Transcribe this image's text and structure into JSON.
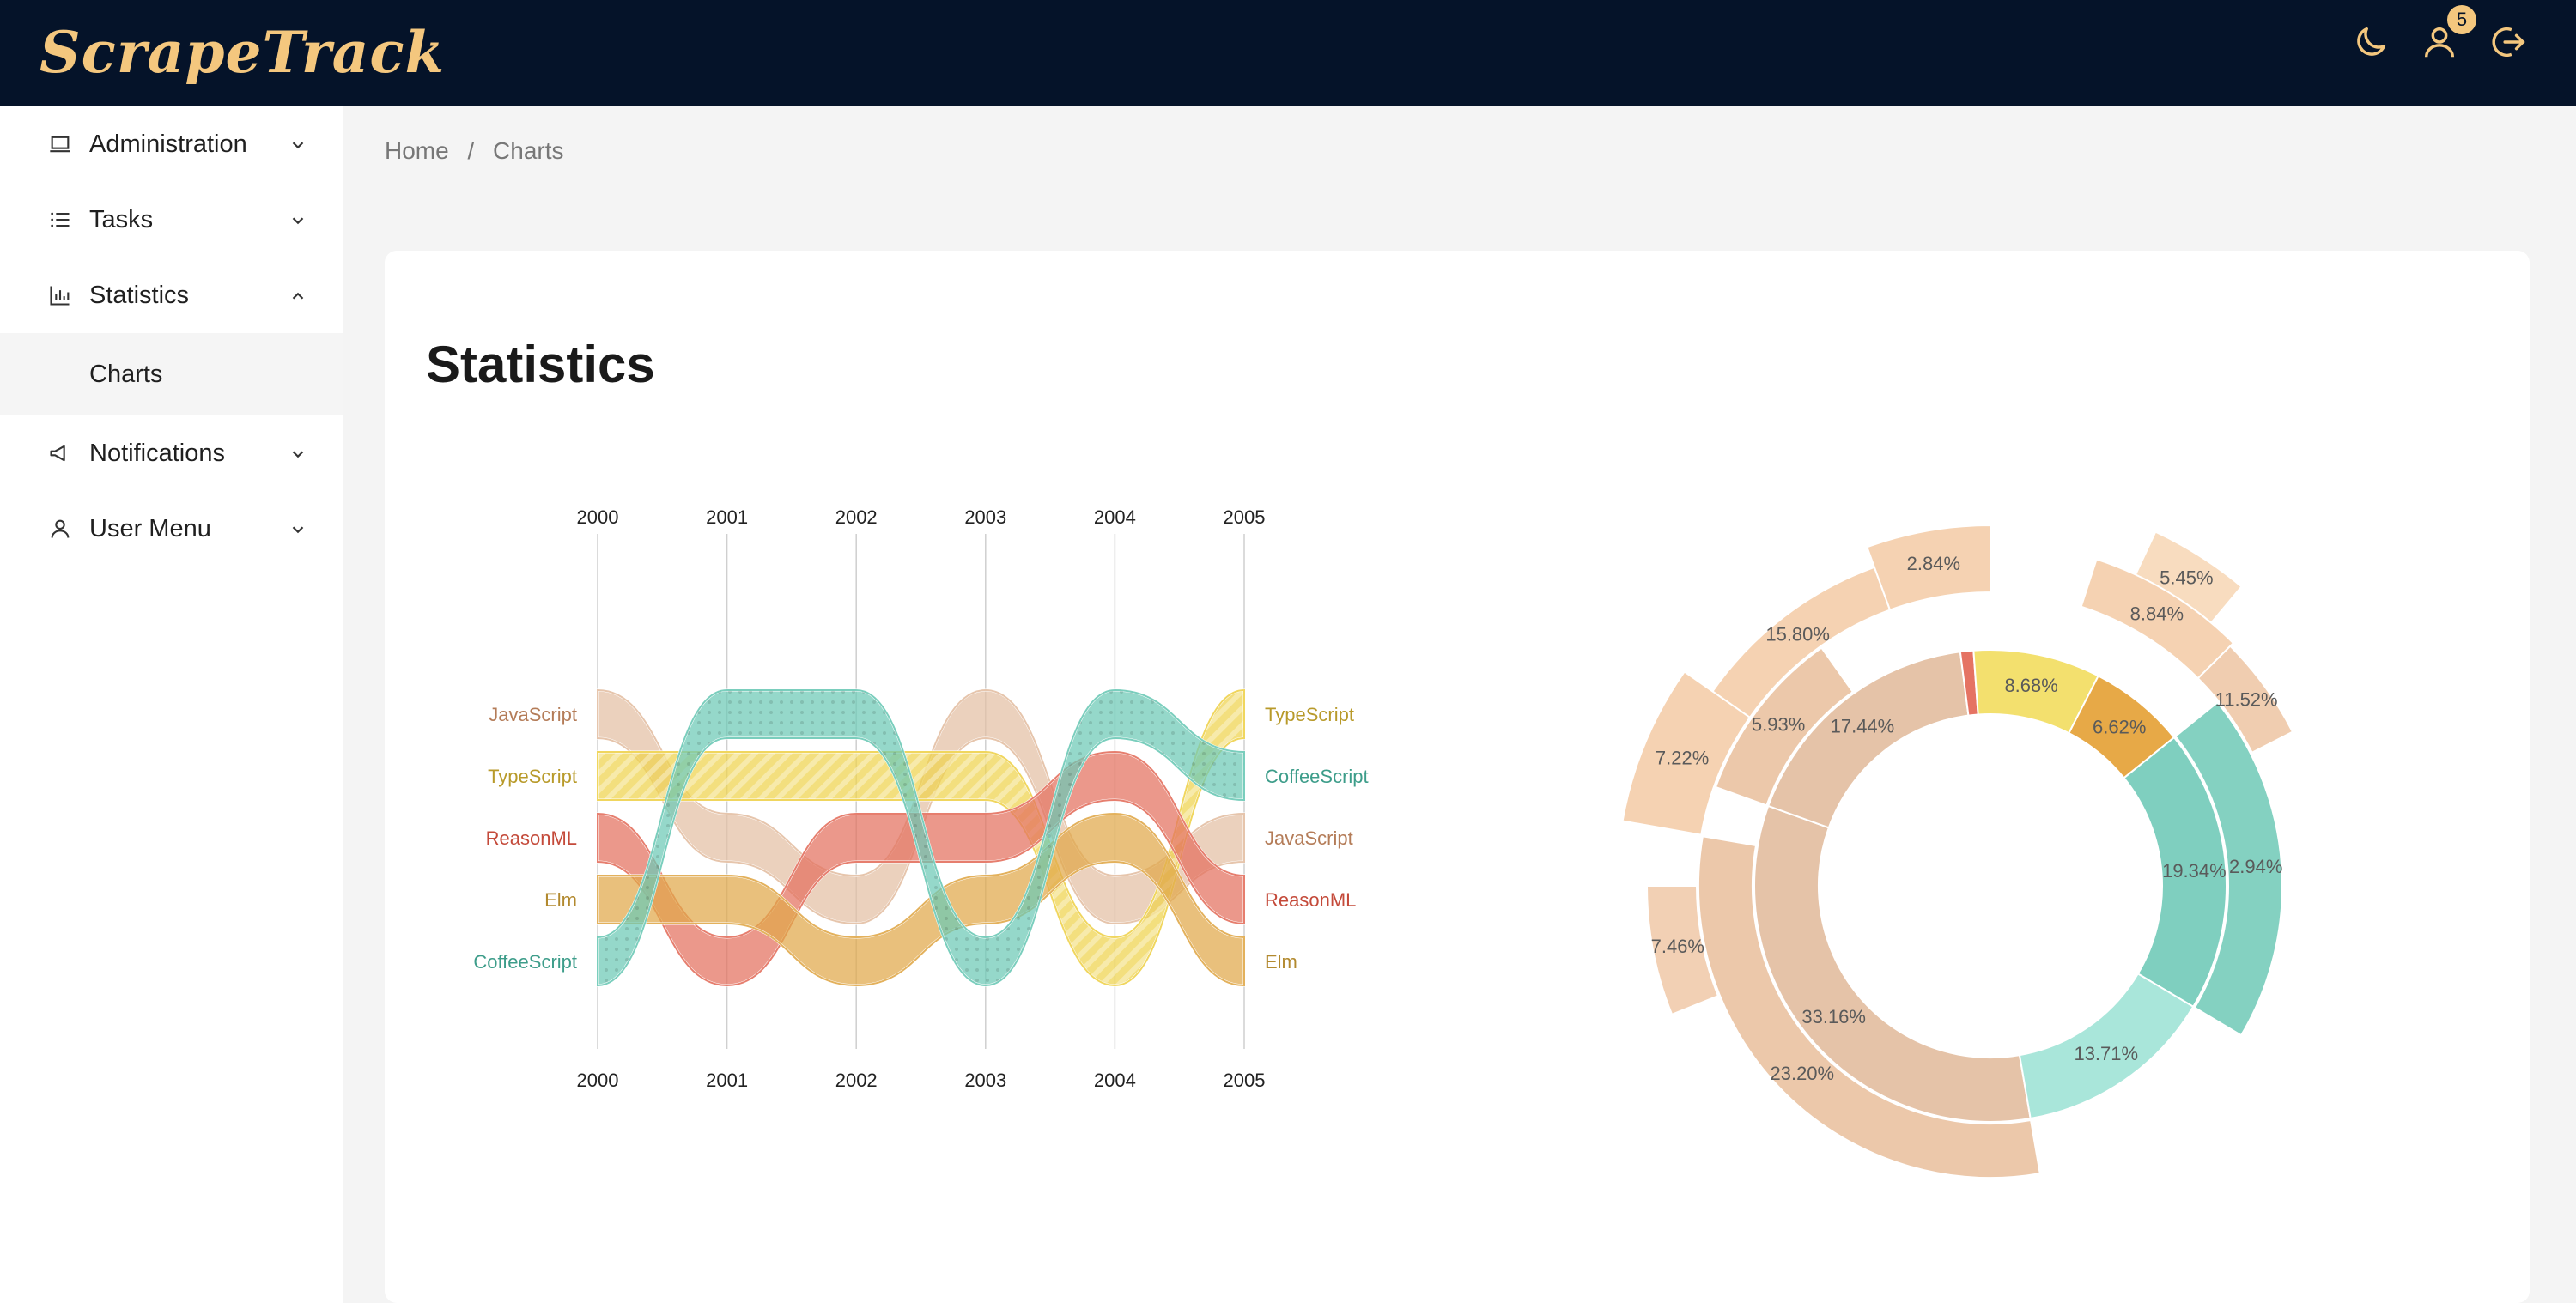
{
  "app": {
    "logo_text": "ScrapeTrack"
  },
  "header": {
    "notification_count": "5"
  },
  "sidebar": {
    "items": [
      {
        "label": "Administration"
      },
      {
        "label": "Tasks"
      },
      {
        "label": "Statistics"
      },
      {
        "label": "Charts"
      },
      {
        "label": "Notifications"
      },
      {
        "label": "User Menu"
      }
    ]
  },
  "breadcrumb": {
    "home": "Home",
    "separator": "/",
    "current": "Charts"
  },
  "page": {
    "title": "Statistics"
  },
  "colors": {
    "topbar": "#051329",
    "accent": "#f4c77e",
    "javascript": "#e3bfa3",
    "typescript": "#eed24c",
    "reasonml": "#e3705e",
    "elm": "#e0a84a",
    "coffeescript": "#6cc9b6"
  },
  "chart_data": [
    {
      "type": "bump",
      "title": "",
      "x": [
        "2000",
        "2001",
        "2002",
        "2003",
        "2004",
        "2005"
      ],
      "series": [
        {
          "name": "JavaScript",
          "ranks": [
            1,
            3,
            4,
            1,
            4,
            3
          ]
        },
        {
          "name": "TypeScript",
          "ranks": [
            2,
            2,
            2,
            2,
            5,
            1
          ]
        },
        {
          "name": "ReasonML",
          "ranks": [
            3,
            5,
            3,
            3,
            2,
            4
          ]
        },
        {
          "name": "Elm",
          "ranks": [
            4,
            4,
            5,
            4,
            3,
            5
          ]
        },
        {
          "name": "CoffeeScript",
          "ranks": [
            5,
            1,
            1,
            5,
            1,
            2
          ]
        }
      ],
      "left_labels": [
        "JavaScript",
        "TypeScript",
        "ReasonML",
        "Elm",
        "CoffeeScript"
      ],
      "right_labels": [
        "TypeScript",
        "CoffeeScript",
        "JavaScript",
        "ReasonML",
        "Elm"
      ]
    },
    {
      "type": "sunburst",
      "inner_ring": [
        {
          "value": 33.16,
          "label": "33.16%",
          "color": "#e5c3a8"
        },
        {
          "value": 17.44,
          "label": "17.44%",
          "color": "#e5c3a8"
        },
        {
          "value": 0.9,
          "label": "",
          "color": "#e57363"
        },
        {
          "value": 8.68,
          "label": "8.68%",
          "color": "#f3e06e"
        },
        {
          "value": 6.62,
          "label": "6.62%",
          "color": "#e7a947"
        },
        {
          "value": 19.34,
          "label": "19.34%",
          "color": "#7fcfbf"
        },
        {
          "value": 13.71,
          "label": "13.71%",
          "color": "#a9e6da"
        }
      ],
      "middle_ring": [
        {
          "value": 23.2,
          "label": "23.20%",
          "color": "#ecc8aa"
        },
        {
          "value": 5.93,
          "label": "5.93%",
          "color": "#ecc8aa"
        },
        {
          "value": 2.94,
          "label": "2.94%",
          "color": "#84d1c1"
        }
      ],
      "outer_ring": [
        {
          "value": 15.8,
          "label": "15.80%",
          "color": "#f5d2b2"
        },
        {
          "value": 7.22,
          "label": "7.22%",
          "color": "#f5d2b2"
        },
        {
          "value": 7.46,
          "label": "7.46%",
          "color": "#f2d0b4"
        },
        {
          "value": 2.84,
          "label": "2.84%",
          "color": "#f5d2b2"
        },
        {
          "value": 5.45,
          "label": "5.45%",
          "color": "#f8dcbf"
        },
        {
          "value": 8.84,
          "label": "8.84%",
          "color": "#f5d2b2"
        },
        {
          "value": 11.52,
          "label": "11.52%",
          "color": "#f0cdb0"
        }
      ]
    }
  ]
}
